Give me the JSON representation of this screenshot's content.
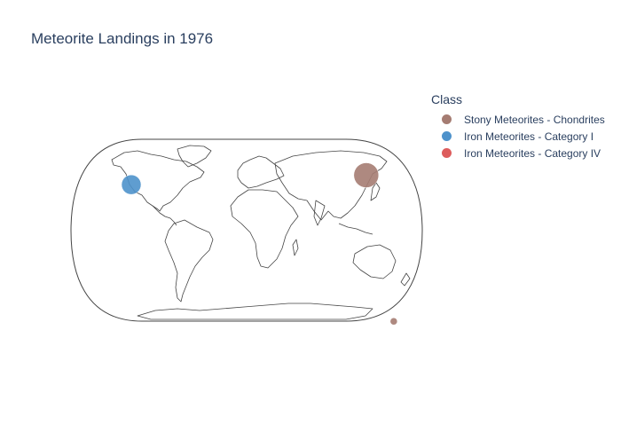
{
  "title": "Meteorite Landings in 1976",
  "legend": {
    "title": "Class",
    "items": [
      {
        "label": "Stony Meteorites - Chondrites",
        "color": "#A57C72"
      },
      {
        "label": "Iron Meteorites - Category I",
        "color": "#4E92CB"
      },
      {
        "label": "Iron Meteorites - Category IV",
        "color": "#DD5C5C"
      }
    ]
  },
  "map_data": {
    "projection": "natural earth",
    "points": [
      {
        "class": "Stony Meteorites - Chondrites",
        "lon": 126.0,
        "lat": 44.0,
        "size": "large"
      },
      {
        "class": "Iron Meteorites - Category I",
        "lon": -121.5,
        "lat": 36.5,
        "size": "medium"
      },
      {
        "class": "Stony Meteorites - Chondrites",
        "lon": 155.0,
        "lat": -72.0,
        "size": "small"
      }
    ]
  }
}
